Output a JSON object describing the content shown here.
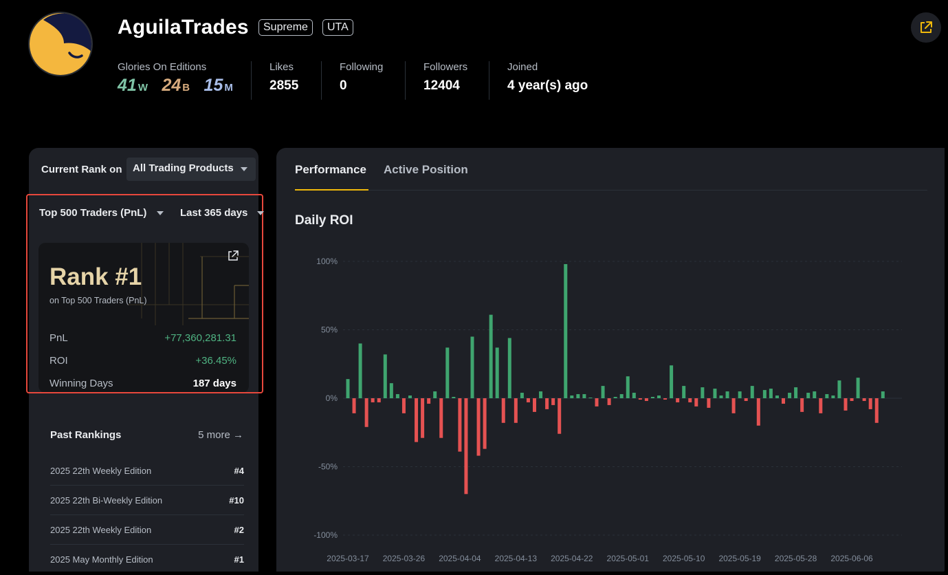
{
  "profile": {
    "username": "AguilaTrades",
    "tags": [
      "Supreme",
      "UTA"
    ]
  },
  "stats": {
    "glories_label": "Glories On Editions",
    "glories": {
      "weekly_count": "41",
      "weekly_unit": "W",
      "biweekly_count": "24",
      "biweekly_unit": "B",
      "monthly_count": "15",
      "monthly_unit": "M"
    },
    "likes_label": "Likes",
    "likes": "2855",
    "following_label": "Following",
    "following": "0",
    "followers_label": "Followers",
    "followers": "12404",
    "joined_label": "Joined",
    "joined": "4 year(s) ago"
  },
  "rank_panel": {
    "current_rank_label": "Current Rank on",
    "product_selected": "All Trading Products",
    "leaderboard_selected": "Top 500 Traders (PnL)",
    "period_selected": "Last 365 days",
    "rank_title": "Rank #1",
    "rank_subtitle": "on Top 500 Traders (PnL)",
    "pnl_label": "PnL",
    "pnl_value": "+77,360,281.31",
    "roi_label": "ROI",
    "roi_value": "+36.45%",
    "winning_days_label": "Winning Days",
    "winning_days_value": "187 days"
  },
  "past_rankings": {
    "title": "Past Rankings",
    "more_label": "5 more →",
    "rows": [
      {
        "edition": "2025 22th Weekly Edition",
        "rank": "#4"
      },
      {
        "edition": "2025 22th Bi-Weekly Edition",
        "rank": "#10"
      },
      {
        "edition": "2025 22th Weekly Edition",
        "rank": "#2"
      },
      {
        "edition": "2025 May Monthly Edition",
        "rank": "#1"
      }
    ]
  },
  "tabs": {
    "performance": "Performance",
    "active_position": "Active Position"
  },
  "colors": {
    "positive": "#3fa56f",
    "negative": "#e55252",
    "accent": "#f0b90b"
  },
  "chart_data": {
    "type": "bar",
    "title": "Daily ROI",
    "xlabel": "",
    "ylabel": "",
    "ylim": [
      -100,
      100
    ],
    "yticks": [
      100,
      50,
      0,
      -50,
      -100
    ],
    "ytick_labels": [
      "100%",
      "50%",
      "0%",
      "-50%",
      "-100%"
    ],
    "xtick_labels": [
      "2025-03-17",
      "2025-03-26",
      "2025-04-04",
      "2025-04-13",
      "2025-04-22",
      "2025-05-01",
      "2025-05-10",
      "2025-05-19",
      "2025-05-28",
      "2025-06-06"
    ],
    "grid": true,
    "start_date": "2025-03-17",
    "values": [
      14,
      -11,
      40,
      -21,
      -3,
      -3,
      32,
      11,
      3,
      -11,
      2,
      -32,
      -29,
      -4,
      5,
      -29,
      37,
      1,
      -39,
      -70,
      45,
      -42,
      -37,
      61,
      37,
      -18,
      44,
      -18,
      4,
      -3,
      -10,
      5,
      -8,
      -5,
      -26,
      98,
      2,
      3,
      3,
      0,
      -6,
      9,
      -5,
      1,
      3,
      16,
      4,
      -1,
      -2,
      1,
      2,
      -1,
      24,
      -3,
      9,
      -3,
      -6,
      8,
      -7,
      7,
      2,
      5,
      -11,
      5,
      -2,
      9,
      -20,
      6,
      7,
      2,
      -4,
      4,
      8,
      -10,
      4,
      5,
      -11,
      3,
      2,
      13,
      -9,
      -2,
      15,
      -2,
      -8,
      -18,
      5
    ]
  }
}
